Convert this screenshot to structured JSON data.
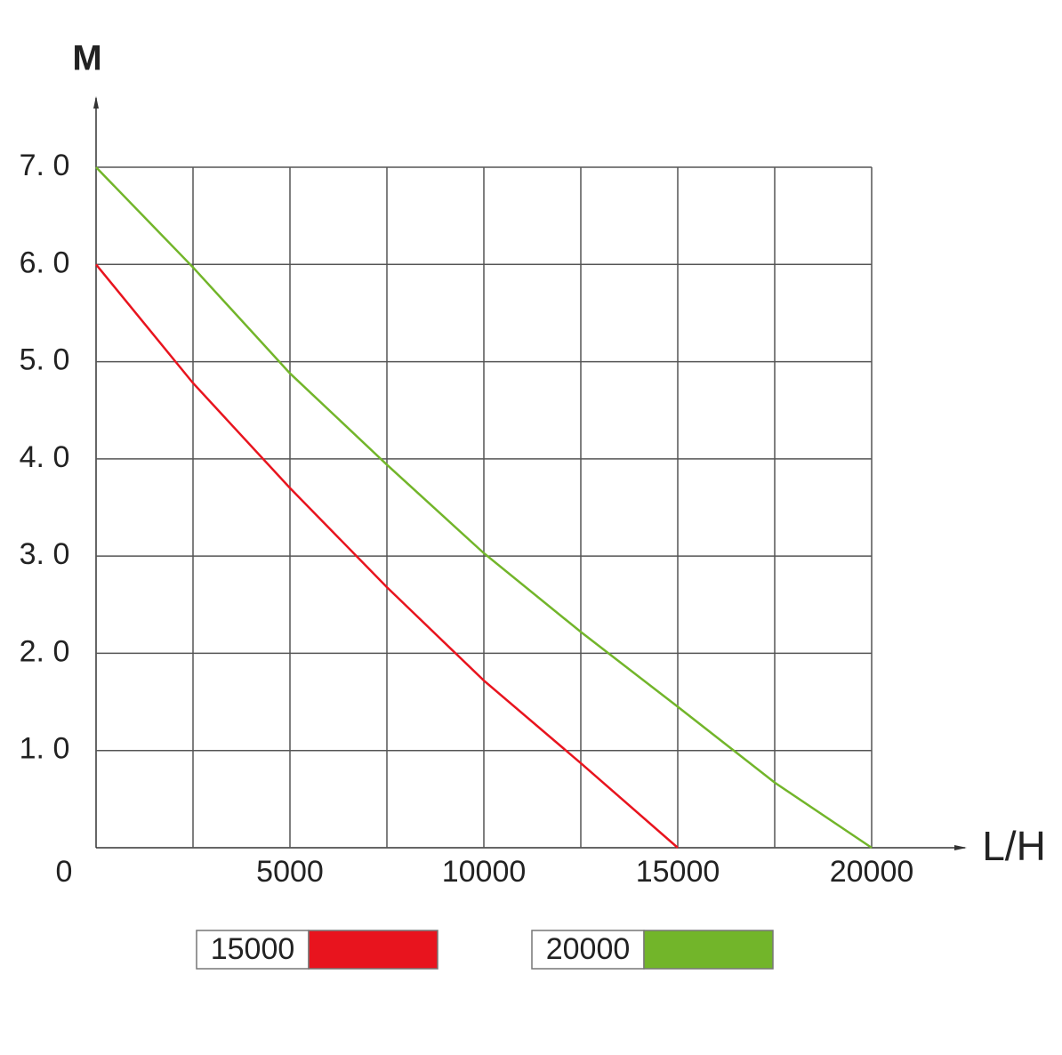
{
  "chart_data": {
    "type": "line",
    "y_label": "M",
    "x_label": "L/H",
    "x": [
      0,
      2500,
      5000,
      7500,
      10000,
      12500,
      15000,
      17500,
      20000
    ],
    "series": [
      {
        "name": "15000",
        "color": "#e8141e",
        "values": [
          6.0,
          4.78,
          3.7,
          2.68,
          1.72,
          0.87,
          0,
          null,
          null
        ]
      },
      {
        "name": "20000",
        "color": "#72b52a",
        "values": [
          7.0,
          5.97,
          4.88,
          3.94,
          3.03,
          2.22,
          1.45,
          0.67,
          0
        ]
      }
    ],
    "xlim": [
      0,
      20000
    ],
    "ylim": [
      0,
      7
    ],
    "xticks": [
      5000,
      10000,
      15000,
      20000
    ],
    "x_grid_lines": [
      2500,
      5000,
      7500,
      10000,
      12500,
      15000,
      17500,
      20000
    ],
    "yticks": [
      0,
      {
        "value": 1,
        "label": "1. 0"
      },
      {
        "value": 2,
        "label": "2. 0"
      },
      {
        "value": 3,
        "label": "3. 0"
      },
      {
        "value": 4,
        "label": "4. 0"
      },
      {
        "value": 5,
        "label": "5. 0"
      },
      {
        "value": 6,
        "label": "6. 0"
      },
      {
        "value": 7,
        "label": "7. 0"
      }
    ],
    "grid": true,
    "legend": "bottom"
  }
}
